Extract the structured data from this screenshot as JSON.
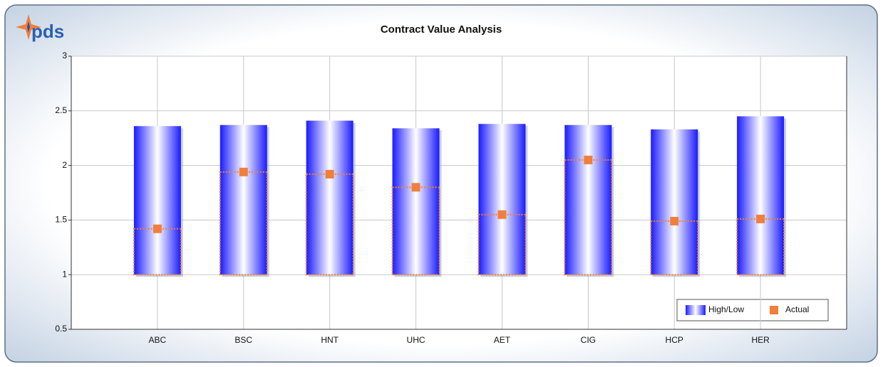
{
  "logo": "pds",
  "chart_data": {
    "type": "rangebar",
    "title": "Contract Value Analysis",
    "categories": [
      "ABC",
      "BSC",
      "HNT",
      "UHC",
      "AET",
      "CIG",
      "HCP",
      "HER"
    ],
    "series": [
      {
        "name": "High/Low",
        "color": "#1a1aff",
        "low": [
          1,
          1,
          1,
          1,
          1,
          1,
          1,
          1
        ],
        "high": [
          2.36,
          2.37,
          2.41,
          2.34,
          2.38,
          2.37,
          2.33,
          2.45
        ]
      },
      {
        "name": "Actual",
        "color": "#f07f3c",
        "values": [
          1.42,
          1.94,
          1.92,
          1.8,
          1.55,
          2.05,
          1.49,
          1.51
        ]
      }
    ],
    "ylim": [
      0.5,
      3
    ],
    "yticks": [
      0.5,
      1,
      1.5,
      2,
      2.5,
      3
    ],
    "grid": true,
    "legend": "lower-right"
  }
}
